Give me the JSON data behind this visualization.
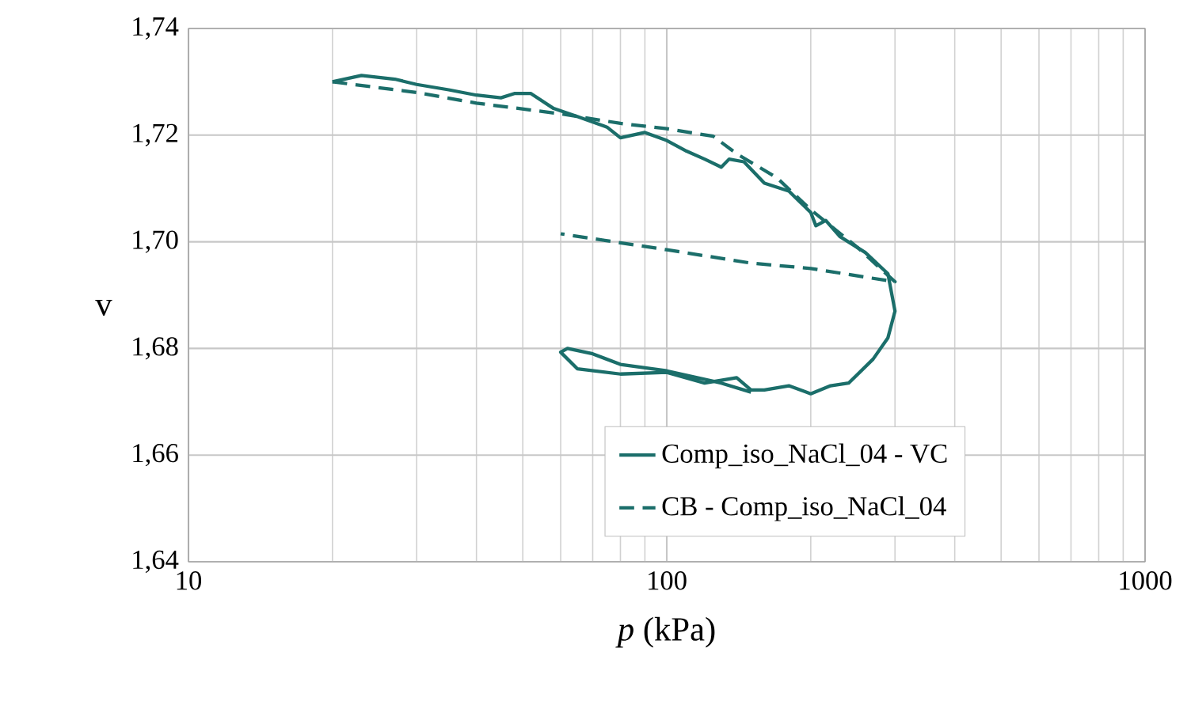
{
  "chart_data": {
    "type": "line",
    "xlabel": "*p* (kPa)",
    "ylabel": "v",
    "log": "x",
    "grid": true,
    "legend": "bottom right",
    "xlim": [
      10,
      1000
    ],
    "xticks": [
      10,
      100,
      1000
    ],
    "ylim": [
      1.64,
      1.74
    ],
    "yticks": [
      {
        "value": 1.64,
        "label": "1,64"
      },
      {
        "value": 1.66,
        "label": "1,66"
      },
      {
        "value": 1.68,
        "label": "1,68"
      },
      {
        "value": 1.7,
        "label": "1,70"
      },
      {
        "value": 1.72,
        "label": "1,72"
      },
      {
        "value": 1.74,
        "label": "1,74"
      }
    ],
    "series": [
      {
        "name": "Comp_iso_NaCl_04 - VC",
        "color": "#1b6e6a",
        "line_style": "solid",
        "x": [
          20,
          23,
          27,
          30,
          35,
          40,
          45,
          48,
          52,
          58,
          65,
          75,
          80,
          90,
          100,
          110,
          120,
          130,
          135,
          145,
          160,
          180,
          200,
          205,
          215,
          230,
          260,
          290,
          300,
          290,
          270,
          240,
          220,
          200,
          180,
          160,
          150,
          140,
          120,
          100,
          80,
          65,
          60,
          62,
          70,
          80,
          100,
          130,
          150
        ],
        "values": [
          1.73,
          1.7312,
          1.7305,
          1.7295,
          1.7285,
          1.7275,
          1.727,
          1.7278,
          1.7278,
          1.725,
          1.7235,
          1.7215,
          1.7195,
          1.7205,
          1.719,
          1.717,
          1.7155,
          1.714,
          1.7155,
          1.715,
          1.711,
          1.7095,
          1.7055,
          1.703,
          1.704,
          1.701,
          1.698,
          1.694,
          1.687,
          1.682,
          1.678,
          1.6735,
          1.673,
          1.6715,
          1.673,
          1.6722,
          1.6722,
          1.6745,
          1.6735,
          1.6755,
          1.6752,
          1.6762,
          1.6793,
          1.68,
          1.679,
          1.677,
          1.6758,
          1.6735,
          1.6718
        ]
      },
      {
        "name": "CB - Comp_iso_NaCl_04",
        "color": "#1b6e6a",
        "line_style": "dashed",
        "x": [
          20,
          30,
          40,
          60,
          80,
          100,
          125,
          140,
          170,
          200,
          250,
          300,
          200,
          150,
          100,
          60
        ],
        "values": [
          1.73,
          1.728,
          1.726,
          1.724,
          1.7222,
          1.7212,
          1.7198,
          1.7165,
          1.712,
          1.706,
          1.699,
          1.6925,
          1.695,
          1.696,
          1.6985,
          1.7015
        ]
      }
    ]
  }
}
